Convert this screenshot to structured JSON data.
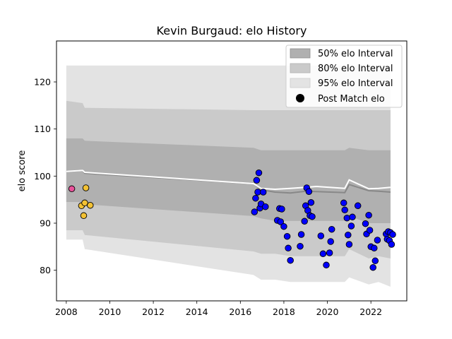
{
  "chart_data": {
    "type": "scatter",
    "title": "Kevin Burgaud: elo History",
    "xlabel": "",
    "ylabel": "elo score",
    "xlim": [
      2007.55,
      2023.65
    ],
    "ylim": [
      73.5,
      128.7
    ],
    "xticks": [
      2008,
      2010,
      2012,
      2014,
      2016,
      2018,
      2020,
      2022
    ],
    "yticks": [
      80,
      90,
      100,
      110,
      120
    ],
    "grid": false,
    "legend_position": "top-right",
    "legend": [
      {
        "label": "50% elo Interval",
        "kind": "band",
        "color": "#b0b0b0"
      },
      {
        "label": "80% elo Interval",
        "kind": "band",
        "color": "#cacaca"
      },
      {
        "label": "95% elo Interval",
        "kind": "band",
        "color": "#e3e3e3"
      },
      {
        "label": "Post Match elo",
        "kind": "marker",
        "color": "#000000"
      }
    ],
    "bands": {
      "x": [
        2008.0,
        2008.75,
        2008.85,
        2016.6,
        2016.95,
        2017.6,
        2018.3,
        2019.0,
        2019.5,
        2020.8,
        2021.0,
        2021.9,
        2022.35,
        2022.9
      ],
      "p95_upper": [
        123.5,
        123.5,
        123.5,
        123.5,
        123.5,
        123.5,
        123.5,
        123.5,
        123.5,
        123.5,
        123.5,
        123.5,
        123.5,
        123.5
      ],
      "p95_lower": [
        86.5,
        86.5,
        84.5,
        79.0,
        78.0,
        78.0,
        77.5,
        77.5,
        77.5,
        77.5,
        78.5,
        77.0,
        77.5,
        76.5
      ],
      "p80_upper": [
        116.0,
        115.5,
        114.5,
        114.0,
        114.0,
        114.0,
        114.0,
        114.0,
        114.0,
        114.0,
        114.0,
        114.0,
        114.0,
        114.0
      ],
      "p80_lower": [
        88.5,
        88.5,
        87.5,
        84.0,
        83.5,
        83.5,
        83.0,
        83.0,
        83.0,
        83.0,
        84.5,
        82.5,
        83.0,
        82.5
      ],
      "p50_upper": [
        108.0,
        108.0,
        107.5,
        106.0,
        105.5,
        105.5,
        105.5,
        105.5,
        105.5,
        105.5,
        106.0,
        105.5,
        105.5,
        105.5
      ],
      "p50_lower": [
        94.5,
        94.5,
        94.0,
        91.5,
        91.0,
        90.5,
        90.5,
        90.5,
        90.5,
        90.5,
        91.5,
        90.0,
        90.0,
        90.0
      ],
      "median": [
        101.0,
        101.2,
        100.6,
        98.4,
        97.1,
        96.6,
        96.4,
        96.8,
        96.7,
        96.5,
        98.2,
        96.9,
        96.8,
        96.6
      ],
      "mean": [
        101.0,
        101.2,
        100.8,
        98.4,
        97.4,
        97.2,
        97.4,
        97.6,
        97.8,
        97.4,
        99.2,
        97.3,
        97.4,
        97.6
      ]
    },
    "series": [
      {
        "color": "#e8529a",
        "points": [
          [
            2008.25,
            97.3
          ]
        ]
      },
      {
        "color": "#f2c134",
        "points": [
          [
            2008.7,
            93.7
          ],
          [
            2008.8,
            91.6
          ],
          [
            2008.85,
            94.3
          ],
          [
            2008.9,
            97.5
          ],
          [
            2009.1,
            93.8
          ]
        ]
      },
      {
        "color": "#0000ff",
        "points": [
          [
            2016.65,
            92.4
          ],
          [
            2016.7,
            95.3
          ],
          [
            2016.75,
            99.1
          ],
          [
            2016.8,
            96.6
          ],
          [
            2016.85,
            100.7
          ],
          [
            2016.9,
            93.2
          ],
          [
            2016.95,
            94.1
          ],
          [
            2017.05,
            96.6
          ],
          [
            2017.15,
            93.5
          ],
          [
            2017.7,
            90.6
          ],
          [
            2017.8,
            93.1
          ],
          [
            2017.85,
            90.3
          ],
          [
            2017.9,
            93.0
          ],
          [
            2018.0,
            89.3
          ],
          [
            2018.15,
            87.2
          ],
          [
            2018.2,
            84.7
          ],
          [
            2018.3,
            82.1
          ],
          [
            2018.75,
            85.1
          ],
          [
            2018.8,
            87.6
          ],
          [
            2018.95,
            90.4
          ],
          [
            2019.0,
            93.7
          ],
          [
            2019.05,
            97.5
          ],
          [
            2019.1,
            92.7
          ],
          [
            2019.15,
            96.7
          ],
          [
            2019.2,
            91.6
          ],
          [
            2019.25,
            94.4
          ],
          [
            2019.3,
            91.4
          ],
          [
            2019.7,
            87.3
          ],
          [
            2019.8,
            83.5
          ],
          [
            2019.95,
            81.1
          ],
          [
            2020.1,
            83.7
          ],
          [
            2020.15,
            86.1
          ],
          [
            2020.2,
            88.7
          ],
          [
            2020.75,
            94.3
          ],
          [
            2020.8,
            92.8
          ],
          [
            2020.9,
            91.1
          ],
          [
            2020.95,
            87.5
          ],
          [
            2021.0,
            85.5
          ],
          [
            2021.1,
            89.4
          ],
          [
            2021.15,
            91.3
          ],
          [
            2021.4,
            93.7
          ],
          [
            2021.75,
            89.9
          ],
          [
            2021.8,
            87.7
          ],
          [
            2021.9,
            91.7
          ],
          [
            2021.95,
            88.5
          ],
          [
            2022.0,
            85.0
          ],
          [
            2022.1,
            80.6
          ],
          [
            2022.15,
            84.7
          ],
          [
            2022.2,
            82.0
          ],
          [
            2022.3,
            86.4
          ],
          [
            2022.7,
            87.7
          ],
          [
            2022.75,
            86.6
          ],
          [
            2022.8,
            88.2
          ],
          [
            2022.85,
            86.3
          ],
          [
            2022.9,
            88.0
          ],
          [
            2022.95,
            85.5
          ],
          [
            2023.0,
            87.6
          ]
        ]
      }
    ]
  }
}
